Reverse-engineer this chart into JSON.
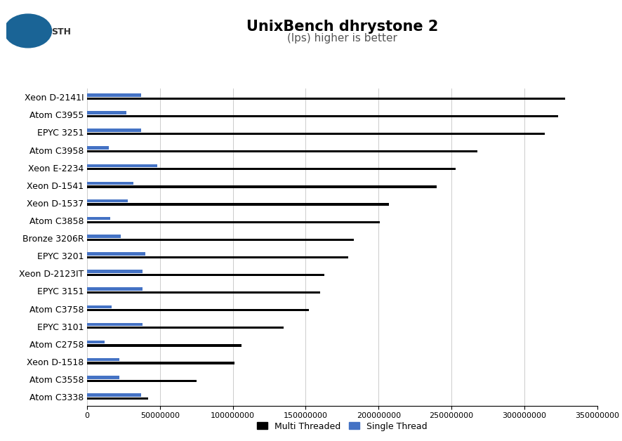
{
  "title": "UnixBench dhrystone 2",
  "subtitle": "(lps) higher is better",
  "categories": [
    "Xeon D-2141I",
    "Atom C3955",
    "EPYC 3251",
    "Atom C3958",
    "Xeon E-2234",
    "Xeon D-1541",
    "Xeon D-1537",
    "Atom C3858",
    "Bronze 3206R",
    "EPYC 3201",
    "Xeon D-2123IT",
    "EPYC 3151",
    "Atom C3758",
    "EPYC 3101",
    "Atom C2758",
    "Xeon D-1518",
    "Atom C3558",
    "Atom C3338"
  ],
  "multi_threaded": [
    328000000,
    323000000,
    314000000,
    268000000,
    253000000,
    240000000,
    207000000,
    201000000,
    183000000,
    179000000,
    163000000,
    160000000,
    152000000,
    135000000,
    106000000,
    101000000,
    75000000,
    42000000
  ],
  "single_thread": [
    37000000,
    27000000,
    37000000,
    15000000,
    48000000,
    32000000,
    28000000,
    16000000,
    23000000,
    40000000,
    38000000,
    38000000,
    17000000,
    38000000,
    12000000,
    22000000,
    22000000,
    37000000
  ],
  "bar_color_multi": "#000000",
  "bar_color_single": "#4472C4",
  "xlim": [
    0,
    350000000
  ],
  "xticks": [
    0,
    50000000,
    100000000,
    150000000,
    200000000,
    250000000,
    300000000,
    350000000
  ],
  "xtick_labels": [
    "0",
    "50000000",
    "100000000",
    "150000000",
    "200000000",
    "250000000",
    "300000000",
    "350000000"
  ],
  "legend_multi": "Multi Threaded",
  "legend_single": "Single Thread",
  "background_color": "#ffffff",
  "title_fontsize": 15,
  "subtitle_fontsize": 11,
  "ytick_fontsize": 9,
  "xtick_fontsize": 8
}
